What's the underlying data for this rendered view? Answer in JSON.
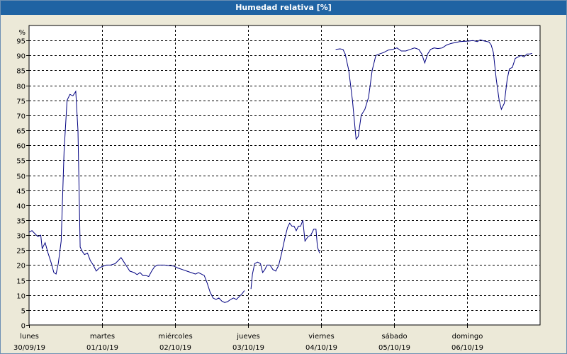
{
  "window": {
    "title": "Humedad relativa [%]"
  },
  "colors": {
    "series": "#000080",
    "titlebar": "#1f63a3",
    "grid": "#000000",
    "background": "#ffffff"
  },
  "chart_data": {
    "type": "line",
    "title": "Humedad relativa [%]",
    "ylabel": "%",
    "xlabel": "",
    "ylim": [
      0,
      100
    ],
    "yticks": [
      0,
      5,
      10,
      15,
      20,
      25,
      30,
      35,
      40,
      45,
      50,
      55,
      60,
      65,
      70,
      75,
      80,
      85,
      90,
      95
    ],
    "xlim": [
      0,
      7
    ],
    "xticks": [
      {
        "day": "lunes",
        "date": "30/09/19"
      },
      {
        "day": "martes",
        "date": "01/10/19"
      },
      {
        "day": "miércoles",
        "date": "02/10/19"
      },
      {
        "day": "jueves",
        "date": "03/10/19"
      },
      {
        "day": "viernes",
        "date": "04/10/19"
      },
      {
        "day": "sábado",
        "date": "05/10/19"
      },
      {
        "day": "domingo",
        "date": "06/10/19"
      }
    ],
    "grid": true,
    "series": [
      {
        "segments": [
          [
            [
              0.0,
              31
            ],
            [
              0.04,
              31.5
            ],
            [
              0.08,
              30.5
            ],
            [
              0.12,
              29.5
            ],
            [
              0.16,
              30
            ],
            [
              0.18,
              25.5
            ],
            [
              0.22,
              27.5
            ],
            [
              0.26,
              24
            ],
            [
              0.3,
              21
            ],
            [
              0.34,
              17.5
            ],
            [
              0.37,
              17
            ],
            [
              0.4,
              20.5
            ],
            [
              0.44,
              28
            ],
            [
              0.48,
              58
            ],
            [
              0.52,
              75
            ],
            [
              0.56,
              77
            ],
            [
              0.6,
              76.5
            ],
            [
              0.64,
              78
            ],
            [
              0.67,
              65
            ],
            [
              0.7,
              26
            ],
            [
              0.73,
              24.5
            ],
            [
              0.76,
              23.5
            ],
            [
              0.8,
              24
            ],
            [
              0.84,
              21.5
            ],
            [
              0.88,
              20
            ],
            [
              0.92,
              18
            ],
            [
              0.96,
              19
            ],
            [
              1.0,
              19.5
            ],
            [
              1.06,
              20
            ],
            [
              1.12,
              20
            ],
            [
              1.18,
              20.5
            ],
            [
              1.22,
              21.5
            ],
            [
              1.26,
              22.5
            ],
            [
              1.3,
              21
            ],
            [
              1.34,
              19.5
            ],
            [
              1.38,
              18
            ],
            [
              1.44,
              17.5
            ],
            [
              1.48,
              16.8
            ],
            [
              1.52,
              17.5
            ],
            [
              1.56,
              16.5
            ],
            [
              1.6,
              16.5
            ],
            [
              1.64,
              16.2
            ],
            [
              1.68,
              18
            ],
            [
              1.72,
              19.5
            ],
            [
              1.76,
              20
            ],
            [
              1.8,
              20
            ],
            [
              1.86,
              20
            ],
            [
              1.92,
              19.8
            ],
            [
              1.98,
              19.7
            ],
            [
              2.04,
              19
            ],
            [
              2.1,
              18.5
            ],
            [
              2.16,
              18
            ],
            [
              2.22,
              17.5
            ],
            [
              2.28,
              17
            ],
            [
              2.32,
              17.5
            ],
            [
              2.36,
              17
            ],
            [
              2.4,
              16.5
            ],
            [
              2.44,
              14
            ],
            [
              2.48,
              11
            ],
            [
              2.52,
              9
            ],
            [
              2.56,
              8.5
            ],
            [
              2.6,
              9
            ],
            [
              2.64,
              8
            ],
            [
              2.68,
              7.5
            ],
            [
              2.72,
              7.8
            ],
            [
              2.76,
              8.5
            ],
            [
              2.8,
              9
            ],
            [
              2.84,
              8.5
            ],
            [
              2.88,
              9.5
            ],
            [
              2.92,
              10.5
            ],
            [
              2.95,
              11.5
            ]
          ],
          [
            [
              3.04,
              12
            ],
            [
              3.06,
              17
            ],
            [
              3.09,
              20.5
            ],
            [
              3.13,
              21
            ],
            [
              3.17,
              20.5
            ],
            [
              3.2,
              17.5
            ],
            [
              3.23,
              18.5
            ],
            [
              3.26,
              20
            ],
            [
              3.3,
              20
            ],
            [
              3.34,
              18.5
            ],
            [
              3.38,
              18
            ],
            [
              3.42,
              20
            ],
            [
              3.46,
              24
            ],
            [
              3.5,
              28.5
            ],
            [
              3.54,
              32.5
            ],
            [
              3.57,
              34
            ],
            [
              3.6,
              33
            ],
            [
              3.63,
              33
            ],
            [
              3.66,
              31.5
            ],
            [
              3.69,
              33
            ],
            [
              3.72,
              33
            ],
            [
              3.75,
              35
            ],
            [
              3.78,
              28
            ],
            [
              3.82,
              29.5
            ],
            [
              3.86,
              30
            ],
            [
              3.9,
              32
            ],
            [
              3.93,
              32
            ],
            [
              3.95,
              26
            ],
            [
              3.98,
              24
            ]
          ],
          [
            [
              4.2,
              92
            ],
            [
              4.26,
              92.2
            ],
            [
              4.3,
              92
            ],
            [
              4.33,
              90.5
            ],
            [
              4.38,
              85
            ],
            [
              4.43,
              75
            ],
            [
              4.48,
              62
            ],
            [
              4.51,
              63
            ],
            [
              4.55,
              70
            ],
            [
              4.6,
              72
            ],
            [
              4.65,
              76
            ],
            [
              4.7,
              85
            ],
            [
              4.75,
              90
            ],
            [
              4.8,
              90.5
            ],
            [
              4.86,
              91
            ],
            [
              4.92,
              91.8
            ],
            [
              4.98,
              92
            ],
            [
              5.04,
              92.5
            ],
            [
              5.1,
              91.5
            ],
            [
              5.16,
              91.5
            ],
            [
              5.22,
              92
            ],
            [
              5.28,
              92.5
            ],
            [
              5.34,
              92
            ],
            [
              5.38,
              90.5
            ],
            [
              5.42,
              87.5
            ],
            [
              5.46,
              90.5
            ],
            [
              5.5,
              92
            ],
            [
              5.55,
              92.5
            ],
            [
              5.6,
              92.3
            ],
            [
              5.66,
              92.5
            ],
            [
              5.72,
              93.5
            ],
            [
              5.78,
              94
            ],
            [
              5.84,
              94.3
            ],
            [
              5.9,
              94.6
            ],
            [
              5.96,
              94.7
            ],
            [
              6.02,
              94.8
            ],
            [
              6.08,
              95
            ],
            [
              6.14,
              94.6
            ],
            [
              6.18,
              95.2
            ],
            [
              6.24,
              94.8
            ],
            [
              6.3,
              94.5
            ],
            [
              6.33,
              93.5
            ],
            [
              6.36,
              91
            ],
            [
              6.4,
              82
            ],
            [
              6.44,
              75
            ],
            [
              6.47,
              72
            ],
            [
              6.51,
              74
            ],
            [
              6.55,
              82
            ],
            [
              6.58,
              85.5
            ],
            [
              6.62,
              86
            ],
            [
              6.66,
              89
            ],
            [
              6.7,
              89.5
            ],
            [
              6.74,
              90
            ],
            [
              6.78,
              89.5
            ],
            [
              6.82,
              90.5
            ],
            [
              6.86,
              90.5
            ],
            [
              6.89,
              90.7
            ]
          ]
        ]
      }
    ]
  }
}
